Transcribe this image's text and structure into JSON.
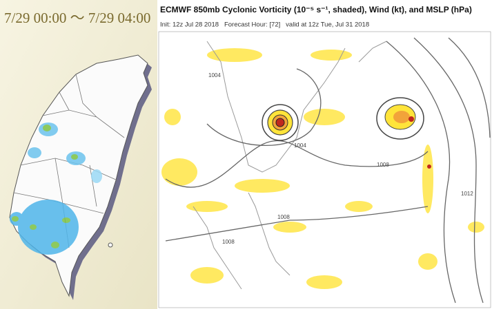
{
  "left_panel": {
    "title": "7/29 00:00 ～ 7/29 04:00"
  },
  "right_panel": {
    "title": "ECMWF 850mb Cyclonic Vorticity (10⁻⁵ s⁻¹, shaded), Wind (kt), and MSLP (hPa)",
    "subtitle": "Init: 12z Jul 28 2018   Forecast Hour: [72]   valid at 12z Tue, Jul 31 2018",
    "contour_labels": [
      "1004",
      "1004",
      "1008",
      "1008",
      "1008",
      "1012"
    ]
  }
}
